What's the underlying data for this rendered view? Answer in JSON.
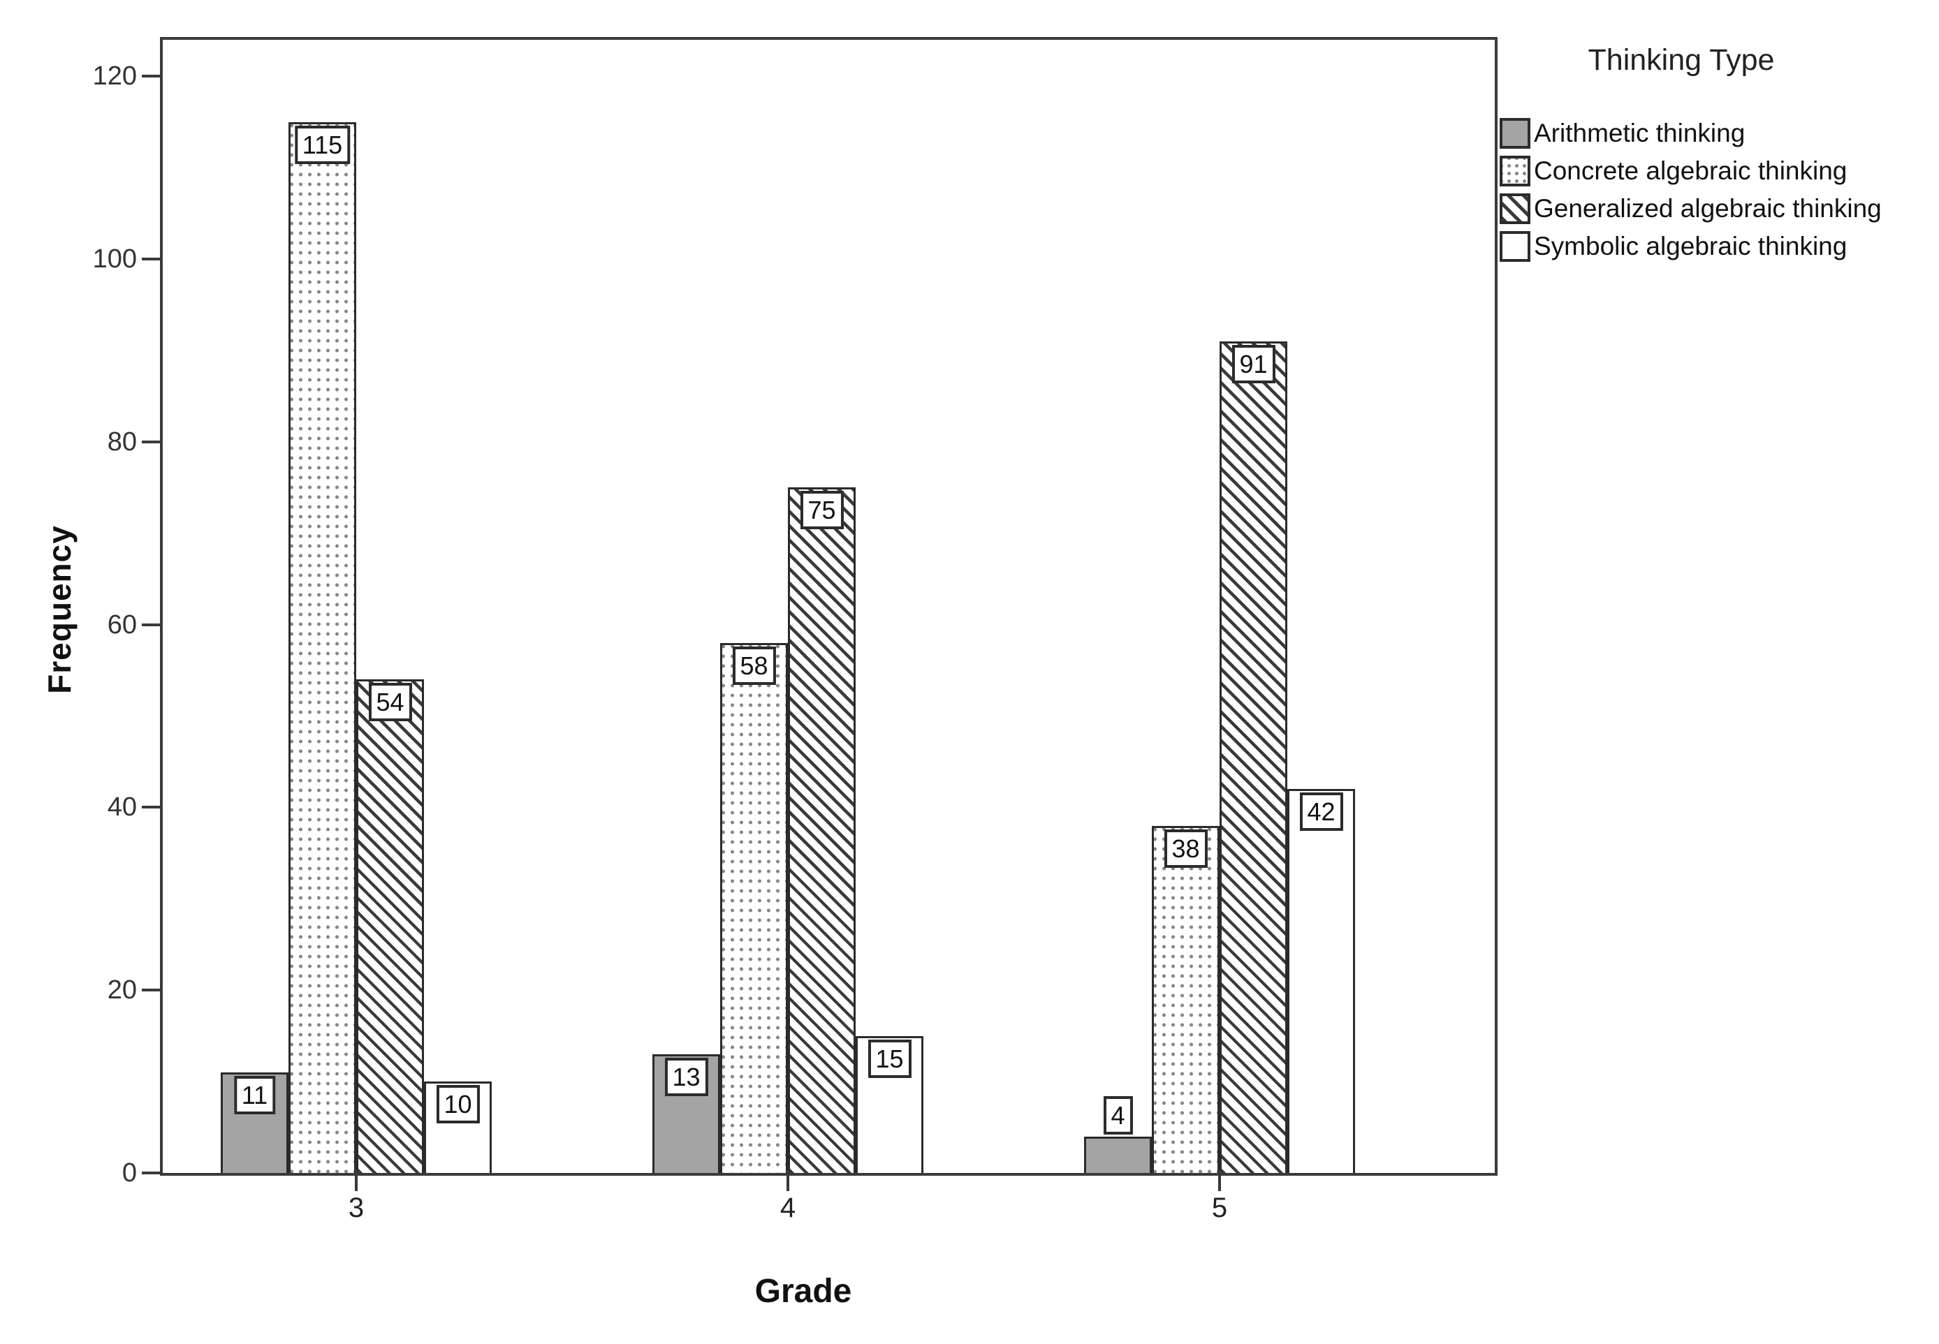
{
  "chart_data": {
    "type": "bar",
    "categories": [
      "3",
      "4",
      "5"
    ],
    "series": [
      {
        "name": "Arithmetic thinking",
        "pattern": "solid-gray",
        "values": [
          11,
          13,
          4
        ]
      },
      {
        "name": "Concrete algebraic thinking",
        "pattern": "dots",
        "values": [
          115,
          58,
          38
        ]
      },
      {
        "name": "Generalized algebraic thinking",
        "pattern": "diagonal-hatch",
        "values": [
          54,
          75,
          91
        ]
      },
      {
        "name": "Symbolic algebraic thinking",
        "pattern": "plain-white",
        "values": [
          10,
          15,
          42
        ]
      }
    ],
    "xlabel": "Grade",
    "ylabel": "Frequency",
    "ylim": [
      0,
      124
    ],
    "yticks": [
      0,
      20,
      40,
      60,
      80,
      100,
      120
    ],
    "legend_title": "Thinking Type",
    "legend_position": "right",
    "grid": false,
    "bar_value_labels": true
  },
  "colors": {
    "bar_gray_fill": "#a4a4a4",
    "line_black": "#2b2b2b",
    "dot_gray": "#868686",
    "background": "#ffffff"
  }
}
